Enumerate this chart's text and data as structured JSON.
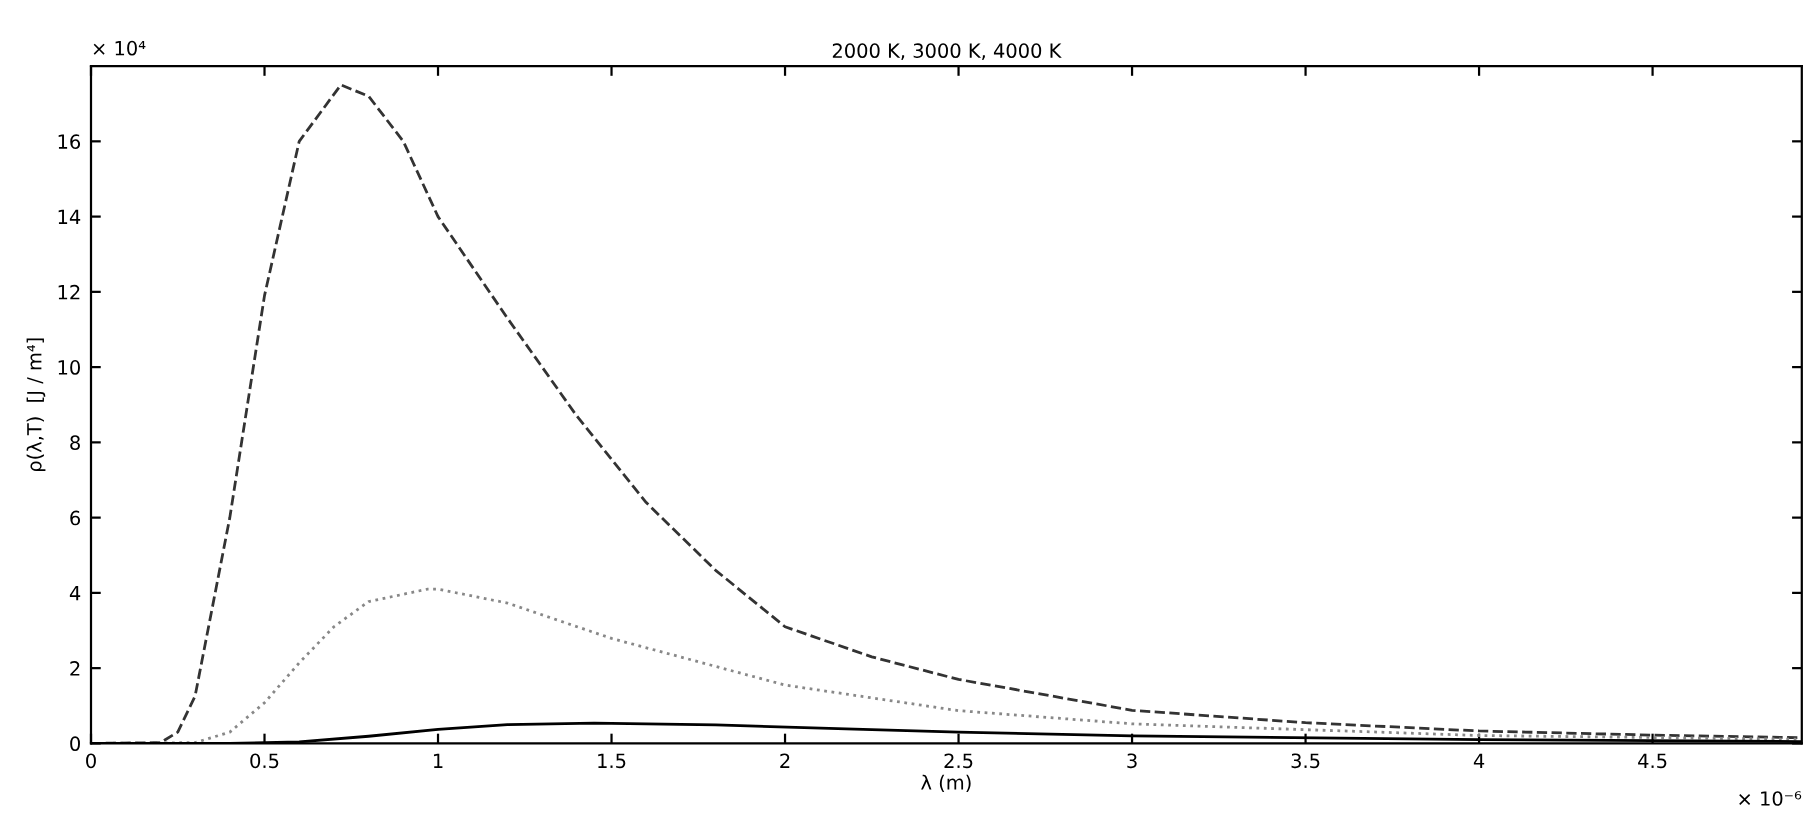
{
  "chart_data": {
    "type": "line",
    "title": "2000 K, 3000 K, 4000 K",
    "xlabel": "λ (m)",
    "ylabel": "ρ(λ,T)  [J / m⁴]",
    "annotations": [
      "× 10⁴",
      "× 10⁻⁶"
    ],
    "xlim": [
      0,
      4.93
    ],
    "ylim": [
      0,
      18
    ],
    "xticks": [
      0,
      0.5,
      1,
      1.5,
      2,
      2.5,
      3,
      3.5,
      4,
      4.5
    ],
    "yticks": [
      0,
      2,
      4,
      6,
      8,
      10,
      12,
      14,
      16
    ],
    "grid": false,
    "legend": false,
    "series": [
      {
        "color": "#333333",
        "line_style": "dashed",
        "x": [
          0,
          0.2,
          0.25,
          0.3,
          0.4,
          0.5,
          0.6,
          0.72,
          0.8,
          0.9,
          1.0,
          1.2,
          1.4,
          1.6,
          1.8,
          2.0,
          2.25,
          2.5,
          3.0,
          3.5,
          4.0,
          4.5,
          4.93
        ],
        "values": [
          0,
          0.02,
          0.3,
          1.26,
          6.0,
          11.9,
          16.0,
          17.5,
          17.2,
          16.0,
          14.0,
          11.3,
          8.7,
          6.4,
          4.6,
          3.1,
          2.3,
          1.7,
          0.88,
          0.55,
          0.33,
          0.22,
          0.15
        ]
      },
      {
        "color": "#888888",
        "line_style": "dotted",
        "x": [
          0,
          0.3,
          0.4,
          0.5,
          0.6,
          0.7,
          0.8,
          0.97,
          1.0,
          1.2,
          1.5,
          2.0,
          2.5,
          3.0,
          4.0,
          4.93
        ],
        "values": [
          0,
          0.02,
          0.3,
          1.08,
          2.14,
          3.1,
          3.77,
          4.1,
          4.1,
          3.73,
          2.79,
          1.55,
          0.87,
          0.52,
          0.21,
          0.11
        ]
      },
      {
        "color": "#000000",
        "line_style": "solid",
        "x": [
          0,
          0.4,
          0.6,
          0.8,
          1.0,
          1.2,
          1.45,
          1.8,
          2.2,
          2.5,
          3.0,
          4.0,
          4.93
        ],
        "values": [
          0,
          0.0,
          0.04,
          0.19,
          0.37,
          0.5,
          0.54,
          0.49,
          0.38,
          0.3,
          0.2,
          0.1,
          0.05
        ]
      }
    ]
  }
}
